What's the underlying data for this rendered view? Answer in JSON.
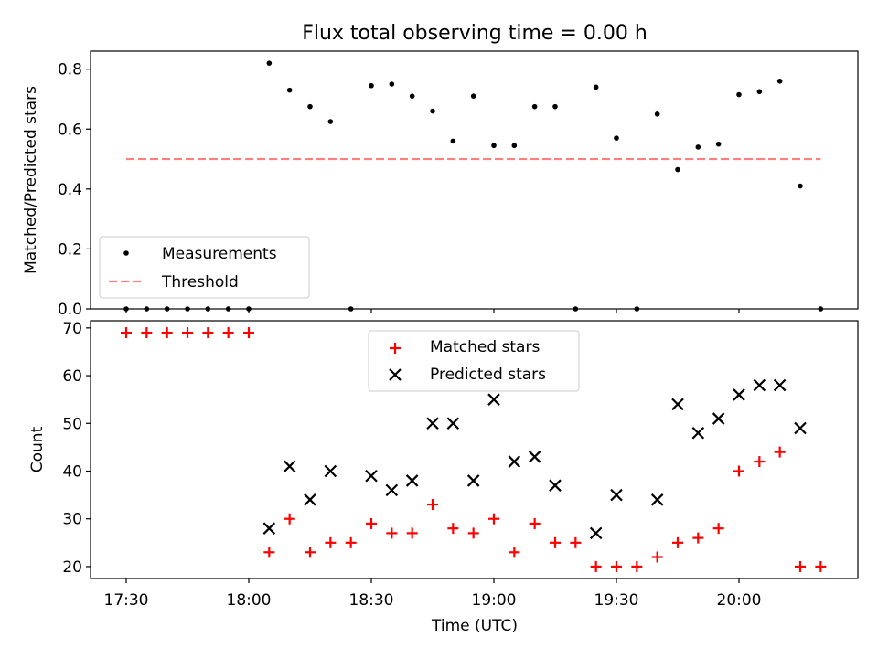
{
  "chart_data": [
    {
      "type": "scatter",
      "title": "Flux total observing time = 0.00 h",
      "xlabel": "",
      "ylabel": "Matched/Predicted stars",
      "ylim": [
        0,
        0.86
      ],
      "yticks": [
        "0.0",
        "0.2",
        "0.4",
        "0.6",
        "0.8"
      ],
      "legend_position": "lower-left",
      "series": [
        {
          "name": "Measurements",
          "marker": "dot",
          "color": "#000000",
          "x": [
            "17:30",
            "17:35",
            "17:40",
            "17:45",
            "17:50",
            "17:55",
            "18:00",
            "18:05",
            "18:10",
            "18:15",
            "18:20",
            "18:25",
            "18:30",
            "18:35",
            "18:40",
            "18:45",
            "18:50",
            "18:55",
            "19:00",
            "19:05",
            "19:10",
            "19:15",
            "19:20",
            "19:25",
            "19:30",
            "19:35",
            "19:40",
            "19:45",
            "19:50",
            "19:55",
            "20:00",
            "20:05",
            "20:10",
            "20:15",
            "20:20"
          ],
          "values": [
            0,
            0,
            0,
            0,
            0,
            0,
            0,
            0.82,
            0.73,
            0.675,
            0.625,
            0,
            0.745,
            0.75,
            0.71,
            0.66,
            0.56,
            0.71,
            0.545,
            0.545,
            0.675,
            0.675,
            0,
            0.74,
            0.57,
            0,
            0.65,
            0.465,
            0.54,
            0.55,
            0.715,
            0.725,
            0.76,
            0.41,
            0
          ]
        },
        {
          "name": "Threshold",
          "style": "dashed",
          "color": "#ff7f7f",
          "x": [
            "17:30",
            "20:20"
          ],
          "values": [
            0.5,
            0.5
          ]
        }
      ]
    },
    {
      "type": "scatter",
      "title": "",
      "xlabel": "Time (UTC)",
      "ylabel": "Count",
      "ylim": [
        17.5,
        71.5
      ],
      "yticks": [
        "20",
        "30",
        "40",
        "50",
        "60",
        "70"
      ],
      "xticks": [
        "17:30",
        "18:00",
        "18:30",
        "19:00",
        "19:30",
        "20:00"
      ],
      "legend_position": "upper-center",
      "series": [
        {
          "name": "Matched stars",
          "marker": "plus",
          "color": "#ff0000",
          "x": [
            "17:30",
            "17:35",
            "17:40",
            "17:45",
            "17:50",
            "17:55",
            "18:00",
            "18:05",
            "18:10",
            "18:15",
            "18:20",
            "18:25",
            "18:30",
            "18:35",
            "18:40",
            "18:45",
            "18:50",
            "18:55",
            "19:00",
            "19:05",
            "19:10",
            "19:15",
            "19:20",
            "19:25",
            "19:30",
            "19:35",
            "19:40",
            "19:45",
            "19:50",
            "19:55",
            "20:00",
            "20:05",
            "20:10",
            "20:15",
            "20:20"
          ],
          "values": [
            69,
            69,
            69,
            69,
            69,
            69,
            69,
            23,
            30,
            23,
            25,
            25,
            29,
            27,
            27,
            33,
            28,
            27,
            30,
            23,
            29,
            25,
            25,
            20,
            20,
            20,
            22,
            25,
            26,
            28,
            40,
            42,
            44,
            20,
            20
          ]
        },
        {
          "name": "Predicted stars",
          "marker": "x",
          "color": "#000000",
          "x": [
            "18:05",
            "18:10",
            "18:15",
            "18:20",
            "18:30",
            "18:35",
            "18:40",
            "18:45",
            "18:50",
            "18:55",
            "19:00",
            "19:05",
            "19:10",
            "19:15",
            "19:25",
            "19:30",
            "19:40",
            "19:45",
            "19:50",
            "19:55",
            "20:00",
            "20:05",
            "20:10",
            "20:15"
          ],
          "values": [
            28,
            41,
            34,
            40,
            39,
            36,
            38,
            50,
            50,
            38,
            55,
            42,
            43,
            37,
            27,
            35,
            34,
            54,
            48,
            51,
            56,
            58,
            58,
            49
          ]
        }
      ]
    }
  ]
}
